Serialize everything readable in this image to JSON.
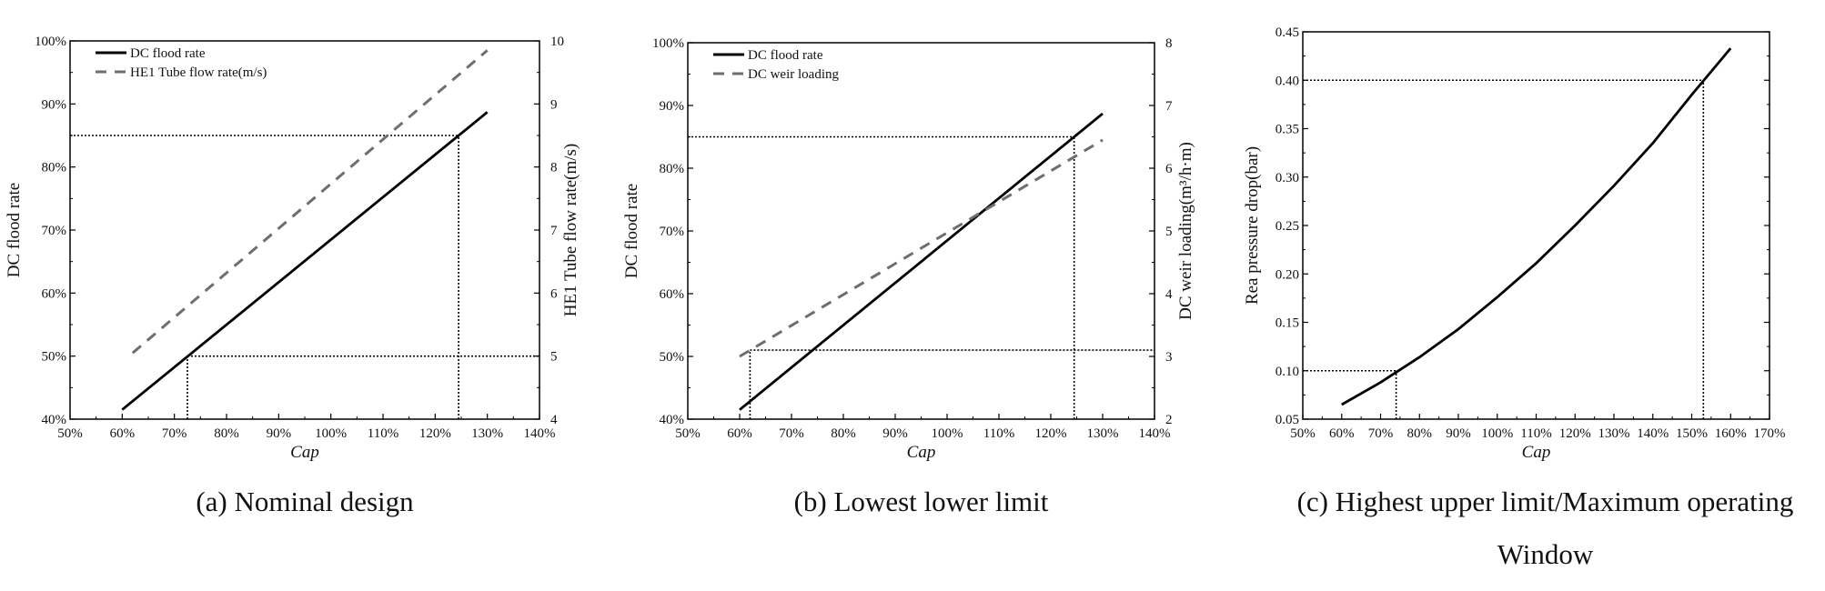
{
  "chart_data": [
    {
      "type": "line",
      "caption": "(a) Nominal design",
      "xlabel": "Cap",
      "ylabel": "DC flood rate",
      "y2label": "HE1 Tube flow rate(m/s)",
      "xlim": [
        50,
        140
      ],
      "xticks": [
        "50%",
        "60%",
        "70%",
        "80%",
        "90%",
        "100%",
        "110%",
        "120%",
        "130%",
        "140%"
      ],
      "ylim": [
        40,
        100
      ],
      "yticks": [
        "40%",
        "50%",
        "60%",
        "70%",
        "80%",
        "90%",
        "100%"
      ],
      "y2lim": [
        4,
        10
      ],
      "y2ticks": [
        "4",
        "5",
        "6",
        "7",
        "8",
        "9",
        "10"
      ],
      "legend_position": "top-left",
      "series": [
        {
          "name": "DC flood rate",
          "axis": "left",
          "style": "solid",
          "color": "#000000",
          "x": [
            60,
            130
          ],
          "y": [
            41.5,
            88.7
          ]
        },
        {
          "name": "HE1 Tube flow rate(m/s)",
          "axis": "right",
          "style": "dashed",
          "color": "#6e6e6e",
          "x": [
            62,
            130
          ],
          "y": [
            5.05,
            9.85
          ]
        }
      ],
      "reference_lines": [
        {
          "axis": "left",
          "y": 85,
          "x_from": 50,
          "x_to": 124.5
        },
        {
          "axis": "left",
          "x": 124.5,
          "y_from": 40,
          "y_to": 85
        },
        {
          "axis": "left",
          "y": 50,
          "x_from": 72.5,
          "x_to": 140
        },
        {
          "axis": "left",
          "x": 72.5,
          "y_from": 40,
          "y_to": 50
        }
      ]
    },
    {
      "type": "line",
      "caption": "(b) Lowest lower limit",
      "xlabel": "Cap",
      "ylabel": "DC flood rate",
      "y2label": "DC weir loading(m³/h·m)",
      "xlim": [
        50,
        140
      ],
      "xticks": [
        "50%",
        "60%",
        "70%",
        "80%",
        "90%",
        "100%",
        "110%",
        "120%",
        "130%",
        "140%"
      ],
      "ylim": [
        40,
        100
      ],
      "yticks": [
        "40%",
        "50%",
        "60%",
        "70%",
        "80%",
        "90%",
        "100%"
      ],
      "y2lim": [
        2,
        8
      ],
      "y2ticks": [
        "2",
        "3",
        "4",
        "5",
        "6",
        "7",
        "8"
      ],
      "legend_position": "top-left",
      "series": [
        {
          "name": "DC flood rate",
          "axis": "left",
          "style": "solid",
          "color": "#000000",
          "x": [
            60,
            130
          ],
          "y": [
            41.5,
            88.7
          ]
        },
        {
          "name": "DC weir loading",
          "axis": "right",
          "style": "dashed",
          "color": "#6e6e6e",
          "x": [
            60,
            130
          ],
          "y": [
            3.0,
            6.45
          ]
        }
      ],
      "reference_lines": [
        {
          "axis": "left",
          "y": 85,
          "x_from": 50,
          "x_to": 124.5
        },
        {
          "axis": "left",
          "x": 124.5,
          "y_from": 40,
          "y_to": 85
        },
        {
          "axis": "right",
          "y": 3.1,
          "x_from": 62,
          "x_to": 140
        },
        {
          "axis": "right",
          "x": 62,
          "y_from": 2,
          "y_to": 3.1
        }
      ]
    },
    {
      "type": "line",
      "caption": "(c) Highest upper limit/Maximum operating",
      "caption2": "Window",
      "xlabel": "Cap",
      "ylabel": "Rea pressure drop(bar)",
      "xlim": [
        50,
        170
      ],
      "xticks": [
        "50%",
        "60%",
        "70%",
        "80%",
        "90%",
        "100%",
        "110%",
        "120%",
        "130%",
        "140%",
        "150%",
        "160%",
        "170%"
      ],
      "ylim": [
        0.05,
        0.45
      ],
      "yticks": [
        "0.05",
        "0.10",
        "0.15",
        "0.20",
        "0.25",
        "0.30",
        "0.35",
        "0.40",
        "0.45"
      ],
      "series": [
        {
          "name": "Rea pressure drop",
          "axis": "left",
          "style": "solid",
          "color": "#000000",
          "x": [
            60,
            70,
            80,
            90,
            100,
            110,
            120,
            130,
            140,
            150,
            160
          ],
          "y": [
            0.065,
            0.088,
            0.114,
            0.143,
            0.176,
            0.211,
            0.25,
            0.291,
            0.335,
            0.385,
            0.433
          ]
        }
      ],
      "reference_lines": [
        {
          "axis": "left",
          "y": 0.4,
          "x_from": 50,
          "x_to": 153
        },
        {
          "axis": "left",
          "x": 153,
          "y_from": 0.05,
          "y_to": 0.4
        },
        {
          "axis": "left",
          "y": 0.1,
          "x_from": 50,
          "x_to": 74
        },
        {
          "axis": "left",
          "x": 74,
          "y_from": 0.05,
          "y_to": 0.1
        }
      ]
    }
  ]
}
